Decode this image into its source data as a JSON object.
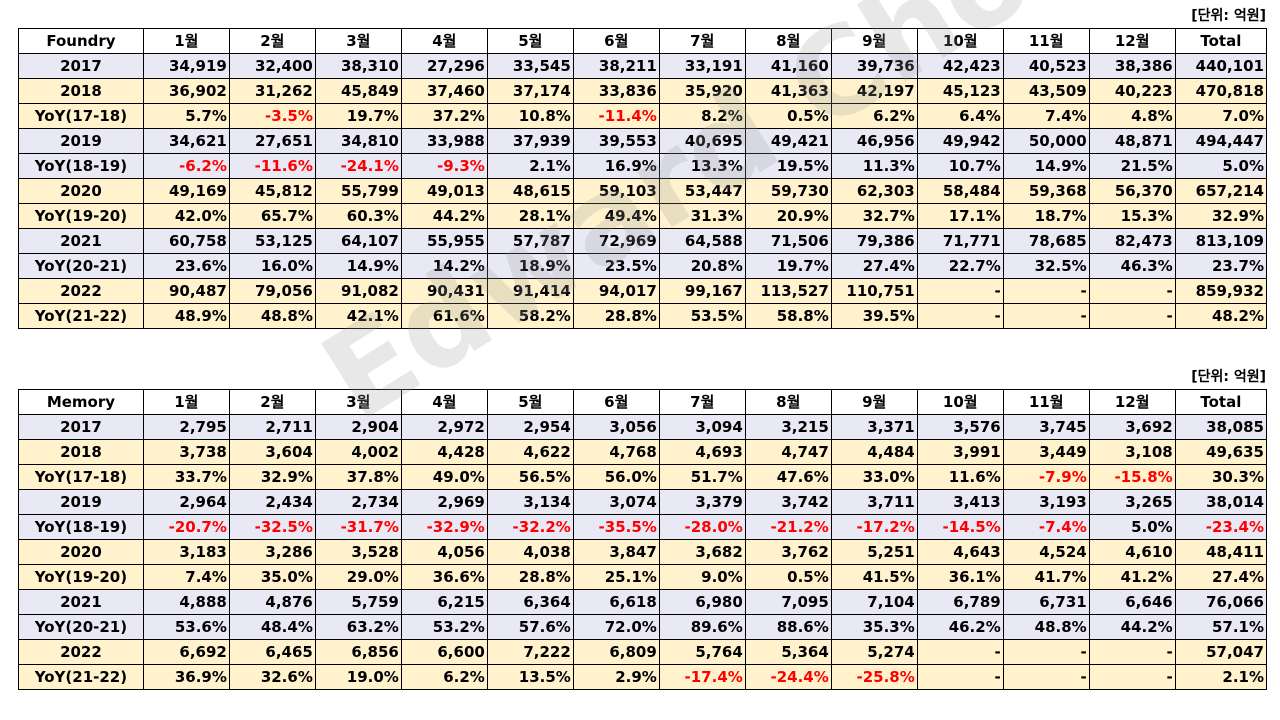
{
  "watermark": "Edward Choi",
  "tables": [
    {
      "unit": "[단위: 억원]",
      "header": [
        "Foundry",
        "1월",
        "2월",
        "3월",
        "4월",
        "5월",
        "6월",
        "7월",
        "8월",
        "9월",
        "10월",
        "11월",
        "12월",
        "Total"
      ],
      "rows": [
        {
          "style": "lav",
          "cells": [
            "2017",
            "34,919",
            "32,400",
            "38,310",
            "27,296",
            "33,545",
            "38,211",
            "33,191",
            "41,160",
            "39,736",
            "42,423",
            "40,523",
            "38,386",
            "440,101"
          ]
        },
        {
          "style": "cream",
          "cells": [
            "2018",
            "36,902",
            "31,262",
            "45,849",
            "37,460",
            "37,174",
            "33,836",
            "35,920",
            "41,363",
            "42,197",
            "45,123",
            "43,509",
            "40,223",
            "470,818"
          ]
        },
        {
          "style": "cream",
          "cells": [
            "YoY(17-18)",
            "5.7%",
            "-3.5%",
            "19.7%",
            "37.2%",
            "10.8%",
            "-11.4%",
            "8.2%",
            "0.5%",
            "6.2%",
            "6.4%",
            "7.4%",
            "4.8%",
            "7.0%"
          ]
        },
        {
          "style": "lav",
          "cells": [
            "2019",
            "34,621",
            "27,651",
            "34,810",
            "33,988",
            "37,939",
            "39,553",
            "40,695",
            "49,421",
            "46,956",
            "49,942",
            "50,000",
            "48,871",
            "494,447"
          ]
        },
        {
          "style": "lav",
          "cells": [
            "YoY(18-19)",
            "-6.2%",
            "-11.6%",
            "-24.1%",
            "-9.3%",
            "2.1%",
            "16.9%",
            "13.3%",
            "19.5%",
            "11.3%",
            "10.7%",
            "14.9%",
            "21.5%",
            "5.0%"
          ]
        },
        {
          "style": "cream",
          "cells": [
            "2020",
            "49,169",
            "45,812",
            "55,799",
            "49,013",
            "48,615",
            "59,103",
            "53,447",
            "59,730",
            "62,303",
            "58,484",
            "59,368",
            "56,370",
            "657,214"
          ]
        },
        {
          "style": "cream",
          "cells": [
            "YoY(19-20)",
            "42.0%",
            "65.7%",
            "60.3%",
            "44.2%",
            "28.1%",
            "49.4%",
            "31.3%",
            "20.9%",
            "32.7%",
            "17.1%",
            "18.7%",
            "15.3%",
            "32.9%"
          ]
        },
        {
          "style": "lav",
          "cells": [
            "2021",
            "60,758",
            "53,125",
            "64,107",
            "55,955",
            "57,787",
            "72,969",
            "64,588",
            "71,506",
            "79,386",
            "71,771",
            "78,685",
            "82,473",
            "813,109"
          ]
        },
        {
          "style": "lav",
          "cells": [
            "YoY(20-21)",
            "23.6%",
            "16.0%",
            "14.9%",
            "14.2%",
            "18.9%",
            "23.5%",
            "20.8%",
            "19.7%",
            "27.4%",
            "22.7%",
            "32.5%",
            "46.3%",
            "23.7%"
          ]
        },
        {
          "style": "cream",
          "cells": [
            "2022",
            "90,487",
            "79,056",
            "91,082",
            "90,431",
            "91,414",
            "94,017",
            "99,167",
            "113,527",
            "110,751",
            "-",
            "-",
            "-",
            "859,932"
          ]
        },
        {
          "style": "cream",
          "cells": [
            "YoY(21-22)",
            "48.9%",
            "48.8%",
            "42.1%",
            "61.6%",
            "58.2%",
            "28.8%",
            "53.5%",
            "58.8%",
            "39.5%",
            "-",
            "-",
            "-",
            "48.2%"
          ]
        }
      ]
    },
    {
      "unit": "[단위: 억원]",
      "header": [
        "Memory",
        "1월",
        "2월",
        "3월",
        "4월",
        "5월",
        "6월",
        "7월",
        "8월",
        "9월",
        "10월",
        "11월",
        "12월",
        "Total"
      ],
      "rows": [
        {
          "style": "lav",
          "cells": [
            "2017",
            "2,795",
            "2,711",
            "2,904",
            "2,972",
            "2,954",
            "3,056",
            "3,094",
            "3,215",
            "3,371",
            "3,576",
            "3,745",
            "3,692",
            "38,085"
          ]
        },
        {
          "style": "cream",
          "cells": [
            "2018",
            "3,738",
            "3,604",
            "4,002",
            "4,428",
            "4,622",
            "4,768",
            "4,693",
            "4,747",
            "4,484",
            "3,991",
            "3,449",
            "3,108",
            "49,635"
          ]
        },
        {
          "style": "cream",
          "cells": [
            "YoY(17-18)",
            "33.7%",
            "32.9%",
            "37.8%",
            "49.0%",
            "56.5%",
            "56.0%",
            "51.7%",
            "47.6%",
            "33.0%",
            "11.6%",
            "-7.9%",
            "-15.8%",
            "30.3%"
          ]
        },
        {
          "style": "lav",
          "cells": [
            "2019",
            "2,964",
            "2,434",
            "2,734",
            "2,969",
            "3,134",
            "3,074",
            "3,379",
            "3,742",
            "3,711",
            "3,413",
            "3,193",
            "3,265",
            "38,014"
          ]
        },
        {
          "style": "lav",
          "cells": [
            "YoY(18-19)",
            "-20.7%",
            "-32.5%",
            "-31.7%",
            "-32.9%",
            "-32.2%",
            "-35.5%",
            "-28.0%",
            "-21.2%",
            "-17.2%",
            "-14.5%",
            "-7.4%",
            "5.0%",
            "-23.4%"
          ]
        },
        {
          "style": "cream",
          "cells": [
            "2020",
            "3,183",
            "3,286",
            "3,528",
            "4,056",
            "4,038",
            "3,847",
            "3,682",
            "3,762",
            "5,251",
            "4,643",
            "4,524",
            "4,610",
            "48,411"
          ]
        },
        {
          "style": "cream",
          "cells": [
            "YoY(19-20)",
            "7.4%",
            "35.0%",
            "29.0%",
            "36.6%",
            "28.8%",
            "25.1%",
            "9.0%",
            "0.5%",
            "41.5%",
            "36.1%",
            "41.7%",
            "41.2%",
            "27.4%"
          ]
        },
        {
          "style": "lav",
          "cells": [
            "2021",
            "4,888",
            "4,876",
            "5,759",
            "6,215",
            "6,364",
            "6,618",
            "6,980",
            "7,095",
            "7,104",
            "6,789",
            "6,731",
            "6,646",
            "76,066"
          ]
        },
        {
          "style": "lav",
          "cells": [
            "YoY(20-21)",
            "53.6%",
            "48.4%",
            "63.2%",
            "53.2%",
            "57.6%",
            "72.0%",
            "89.6%",
            "88.6%",
            "35.3%",
            "46.2%",
            "48.8%",
            "44.2%",
            "57.1%"
          ]
        },
        {
          "style": "cream",
          "cells": [
            "2022",
            "6,692",
            "6,465",
            "6,856",
            "6,600",
            "7,222",
            "6,809",
            "5,764",
            "5,364",
            "5,274",
            "-",
            "-",
            "-",
            "57,047"
          ]
        },
        {
          "style": "cream",
          "cells": [
            "YoY(21-22)",
            "36.9%",
            "32.6%",
            "19.0%",
            "6.2%",
            "13.5%",
            "2.9%",
            "-17.4%",
            "-24.4%",
            "-25.8%",
            "-",
            "-",
            "-",
            "2.1%"
          ]
        }
      ]
    }
  ]
}
